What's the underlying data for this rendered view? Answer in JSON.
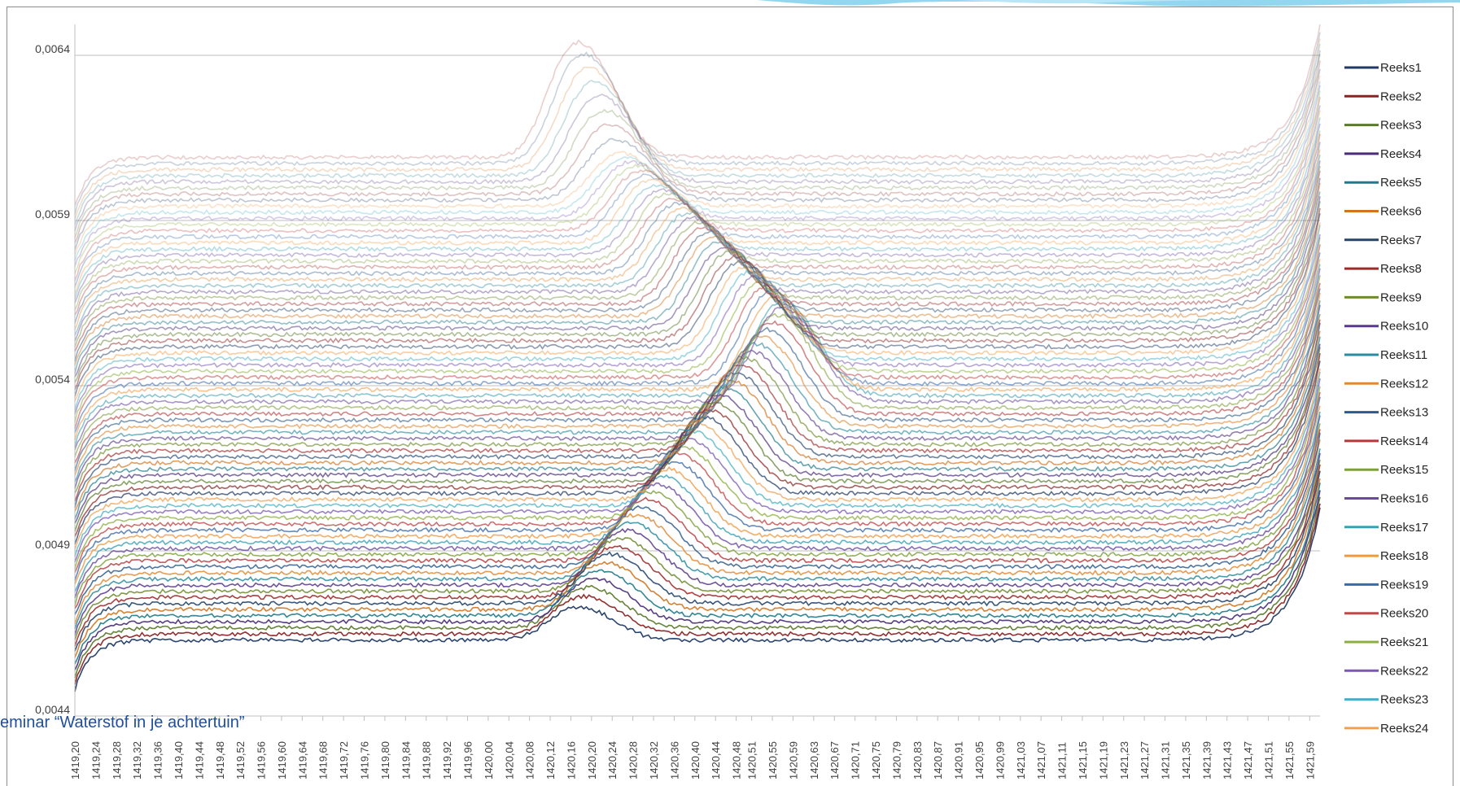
{
  "footer": {
    "caption": "eminar “Waterstof in je achtertuin”"
  },
  "chart_data": {
    "type": "line",
    "title": "",
    "xlabel": "",
    "ylabel": "",
    "ylim": [
      0.0044,
      0.0066
    ],
    "x_range": [
      1419.2,
      1421.61
    ],
    "x_step": 0.04,
    "y_ticks": [
      "0,0044",
      "0,0049",
      "0,0054",
      "0,0059",
      "0,0064"
    ],
    "y_tick_values": [
      0.0044,
      0.0049,
      0.0054,
      0.0059,
      0.0064
    ],
    "x_ticks": [
      "1419,20",
      "1419,24",
      "1419,28",
      "1419,32",
      "1419,36",
      "1419,40",
      "1419,44",
      "1419,48",
      "1419,52",
      "1419,56",
      "1419,60",
      "1419,64",
      "1419,68",
      "1419,72",
      "1419,76",
      "1419,80",
      "1419,84",
      "1419,88",
      "1419,92",
      "1419,96",
      "1420,00",
      "1420,04",
      "1420,08",
      "1420,12",
      "1420,16",
      "1420,20",
      "1420,24",
      "1420,28",
      "1420,32",
      "1420,36",
      "1420,40",
      "1420,44",
      "1420,48",
      "1420,51",
      "1420,55",
      "1420,59",
      "1420,63",
      "1420,67",
      "1420,71",
      "1420,75",
      "1420,79",
      "1420,83",
      "1420,87",
      "1420,91",
      "1420,95",
      "1420,99",
      "1421,03",
      "1421,07",
      "1421,11",
      "1421,15",
      "1421,19",
      "1421,23",
      "1421,27",
      "1421,31",
      "1421,35",
      "1421,39",
      "1421,43",
      "1421,47",
      "1421,51",
      "1421,55",
      "1421,59"
    ],
    "grid": "horizontal major only",
    "legend_position": "right",
    "series_count": 80,
    "series_base_start": 0.00463,
    "series_base_step": 1.85e-05,
    "series": [
      {
        "name": "Reeks1",
        "color": "#1f3a66"
      },
      {
        "name": "Reeks2",
        "color": "#8b2323"
      },
      {
        "name": "Reeks3",
        "color": "#5a7a2a"
      },
      {
        "name": "Reeks4",
        "color": "#4a2c7a"
      },
      {
        "name": "Reeks5",
        "color": "#1f7a8c"
      },
      {
        "name": "Reeks6",
        "color": "#d2741e"
      },
      {
        "name": "Reeks7",
        "color": "#23466e"
      },
      {
        "name": "Reeks8",
        "color": "#a02a2a"
      },
      {
        "name": "Reeks9",
        "color": "#6e8c2e"
      },
      {
        "name": "Reeks10",
        "color": "#5a3a8c"
      },
      {
        "name": "Reeks11",
        "color": "#2a8ca0"
      },
      {
        "name": "Reeks12",
        "color": "#e08a34"
      },
      {
        "name": "Reeks13",
        "color": "#2d5a8c"
      },
      {
        "name": "Reeks14",
        "color": "#b43a3a"
      },
      {
        "name": "Reeks15",
        "color": "#7ea03a"
      },
      {
        "name": "Reeks16",
        "color": "#6a4aa0"
      },
      {
        "name": "Reeks17",
        "color": "#3aa0b4"
      },
      {
        "name": "Reeks18",
        "color": "#ee9a44"
      },
      {
        "name": "Reeks19",
        "color": "#3a6aa8"
      },
      {
        "name": "Reeks20",
        "color": "#c04848"
      },
      {
        "name": "Reeks21",
        "color": "#8cb040"
      },
      {
        "name": "Reeks22",
        "color": "#7a58b4"
      },
      {
        "name": "Reeks23",
        "color": "#48b0c4"
      },
      {
        "name": "Reeks24",
        "color": "#f0a050"
      }
    ]
  }
}
